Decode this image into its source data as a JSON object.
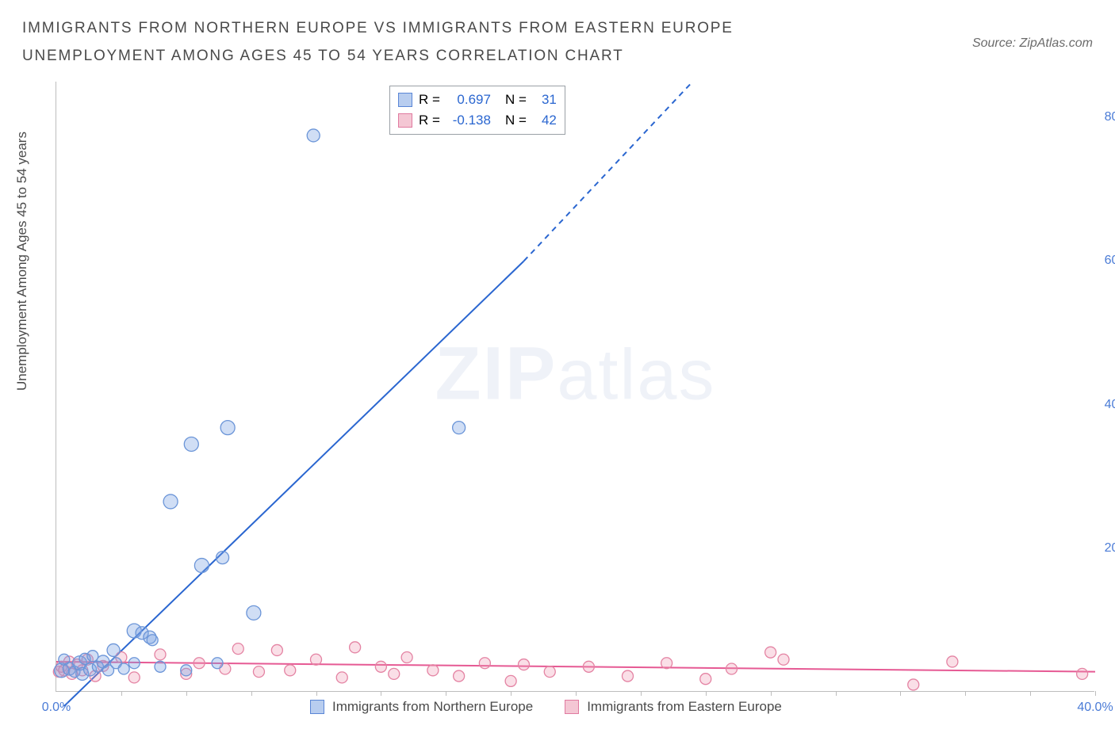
{
  "title": "IMMIGRANTS FROM NORTHERN EUROPE VS IMMIGRANTS FROM EASTERN EUROPE UNEMPLOYMENT AMONG AGES 45 TO 54 YEARS CORRELATION CHART",
  "source": "Source: ZipAtlas.com",
  "ylabel": "Unemployment Among Ages 45 to 54 years",
  "watermark_bold": "ZIP",
  "watermark_rest": "atlas",
  "chart": {
    "type": "scatter-correlation",
    "background_color": "#ffffff",
    "axis_color": "#bdbdbd",
    "xlim": [
      0,
      40
    ],
    "ylim": [
      0,
      85
    ],
    "x_ticks": [
      0,
      5,
      10,
      15,
      20,
      25,
      30,
      35,
      40
    ],
    "x_tick_labels": [
      "0.0%",
      "",
      "",
      "",
      "",
      "",
      "",
      "",
      "40.0%"
    ],
    "y_ticks": [
      20,
      40,
      60,
      80
    ],
    "y_tick_labels": [
      "20.0%",
      "40.0%",
      "60.0%",
      "80.0%"
    ],
    "tick_label_color": "#4a7bd6",
    "tick_fontsize": 16,
    "minor_x_ticks": [
      2.5,
      5,
      7.5,
      10,
      12.5,
      15,
      17.5,
      20,
      22.5,
      25,
      27.5,
      30,
      32.5,
      35,
      37.5,
      40
    ]
  },
  "series_a": {
    "name": "Immigrants from Northern Europe",
    "color_fill": "rgba(120,160,225,0.35)",
    "color_stroke": "#6b95d8",
    "swatch_fill": "#b8cdef",
    "swatch_border": "#5a86d6",
    "marker_radius": 8,
    "R_label": "R =",
    "R_value": "0.697",
    "N_label": "N =",
    "N_value": "31",
    "trend": {
      "x1": 0.3,
      "y1": -2,
      "x2": 18,
      "y2": 60,
      "dash_x2": 24.5,
      "dash_y2": 85,
      "color": "#2a66d0",
      "width": 2
    },
    "points": [
      {
        "x": 0.2,
        "y": 3.0,
        "r": 9
      },
      {
        "x": 0.3,
        "y": 4.5,
        "r": 7
      },
      {
        "x": 0.5,
        "y": 3.2,
        "r": 8
      },
      {
        "x": 0.7,
        "y": 2.8,
        "r": 7
      },
      {
        "x": 0.9,
        "y": 4.0,
        "r": 9
      },
      {
        "x": 1.0,
        "y": 2.5,
        "r": 8
      },
      {
        "x": 1.1,
        "y": 4.6,
        "r": 7
      },
      {
        "x": 1.3,
        "y": 3.1,
        "r": 8
      },
      {
        "x": 1.4,
        "y": 5.0,
        "r": 7
      },
      {
        "x": 1.6,
        "y": 3.5,
        "r": 7
      },
      {
        "x": 1.8,
        "y": 4.2,
        "r": 8
      },
      {
        "x": 2.0,
        "y": 3.0,
        "r": 7
      },
      {
        "x": 2.2,
        "y": 5.8,
        "r": 8
      },
      {
        "x": 2.3,
        "y": 4.0,
        "r": 7
      },
      {
        "x": 2.6,
        "y": 3.2,
        "r": 7
      },
      {
        "x": 3.0,
        "y": 8.5,
        "r": 9
      },
      {
        "x": 3.0,
        "y": 4.0,
        "r": 7
      },
      {
        "x": 3.3,
        "y": 8.2,
        "r": 8
      },
      {
        "x": 3.6,
        "y": 7.6,
        "r": 8
      },
      {
        "x": 3.7,
        "y": 7.2,
        "r": 7
      },
      {
        "x": 4.0,
        "y": 3.5,
        "r": 7
      },
      {
        "x": 4.4,
        "y": 26.5,
        "r": 9
      },
      {
        "x": 5.0,
        "y": 3.0,
        "r": 7
      },
      {
        "x": 5.2,
        "y": 34.5,
        "r": 9
      },
      {
        "x": 5.6,
        "y": 17.6,
        "r": 9
      },
      {
        "x": 6.2,
        "y": 4.0,
        "r": 7
      },
      {
        "x": 6.4,
        "y": 18.7,
        "r": 8
      },
      {
        "x": 6.6,
        "y": 36.8,
        "r": 9
      },
      {
        "x": 7.6,
        "y": 11.0,
        "r": 9
      },
      {
        "x": 9.9,
        "y": 77.5,
        "r": 8
      },
      {
        "x": 15.5,
        "y": 36.8,
        "r": 8
      }
    ]
  },
  "series_b": {
    "name": "Immigrants from Eastern Europe",
    "color_fill": "rgba(240,150,175,0.30)",
    "color_stroke": "#e483a3",
    "swatch_fill": "#f4c7d4",
    "swatch_border": "#e07aa0",
    "marker_radius": 7,
    "R_label": "R =",
    "R_value": "-0.138",
    "N_label": "N =",
    "N_value": "42",
    "trend": {
      "x1": 0,
      "y1": 4.2,
      "x2": 40,
      "y2": 2.8,
      "color": "#e65a94",
      "width": 2
    },
    "points": [
      {
        "x": 0.1,
        "y": 2.8
      },
      {
        "x": 0.2,
        "y": 3.5
      },
      {
        "x": 0.3,
        "y": 3.0
      },
      {
        "x": 0.5,
        "y": 4.2
      },
      {
        "x": 0.6,
        "y": 2.5
      },
      {
        "x": 0.8,
        "y": 3.8
      },
      {
        "x": 1.0,
        "y": 3.0
      },
      {
        "x": 1.2,
        "y": 4.5
      },
      {
        "x": 1.5,
        "y": 2.2
      },
      {
        "x": 1.8,
        "y": 3.6
      },
      {
        "x": 2.5,
        "y": 4.8
      },
      {
        "x": 3.0,
        "y": 2.0
      },
      {
        "x": 4.0,
        "y": 5.2
      },
      {
        "x": 5.0,
        "y": 2.5
      },
      {
        "x": 5.5,
        "y": 4.0
      },
      {
        "x": 6.5,
        "y": 3.2
      },
      {
        "x": 7.0,
        "y": 6.0
      },
      {
        "x": 7.8,
        "y": 2.8
      },
      {
        "x": 8.5,
        "y": 5.8
      },
      {
        "x": 9.0,
        "y": 3.0
      },
      {
        "x": 10.0,
        "y": 4.5
      },
      {
        "x": 11.0,
        "y": 2.0
      },
      {
        "x": 11.5,
        "y": 6.2
      },
      {
        "x": 12.5,
        "y": 3.5
      },
      {
        "x": 13.0,
        "y": 2.5
      },
      {
        "x": 13.5,
        "y": 4.8
      },
      {
        "x": 14.5,
        "y": 3.0
      },
      {
        "x": 15.5,
        "y": 2.2
      },
      {
        "x": 16.5,
        "y": 4.0
      },
      {
        "x": 17.5,
        "y": 1.5
      },
      {
        "x": 18.0,
        "y": 3.8
      },
      {
        "x": 19.0,
        "y": 2.8
      },
      {
        "x": 20.5,
        "y": 3.5
      },
      {
        "x": 22.0,
        "y": 2.2
      },
      {
        "x": 23.5,
        "y": 4.0
      },
      {
        "x": 25.0,
        "y": 1.8
      },
      {
        "x": 26.0,
        "y": 3.2
      },
      {
        "x": 27.5,
        "y": 5.5
      },
      {
        "x": 28.0,
        "y": 4.5
      },
      {
        "x": 33.0,
        "y": 1.0
      },
      {
        "x": 34.5,
        "y": 4.2
      },
      {
        "x": 39.5,
        "y": 2.5
      }
    ]
  },
  "legend_top_text_color": "#4a7bd6"
}
